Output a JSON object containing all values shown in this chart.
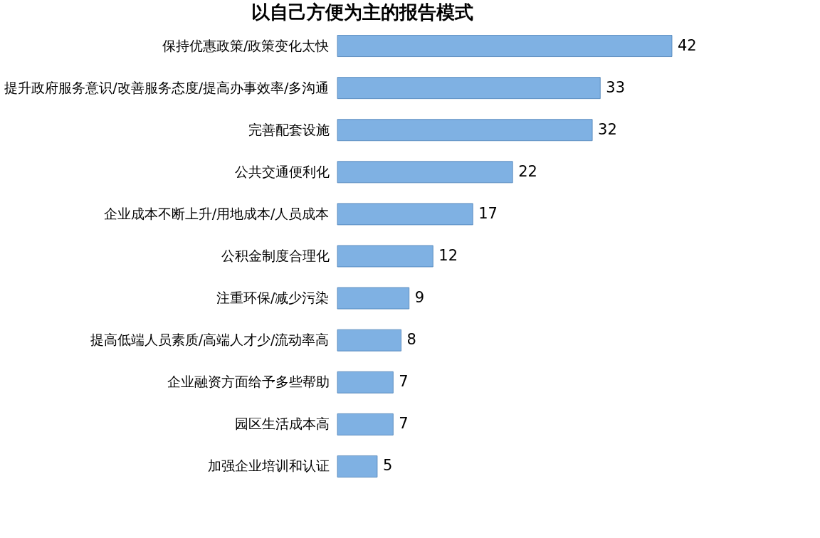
{
  "chart_data": {
    "type": "bar",
    "orientation": "horizontal",
    "title": "以自己方便为主的报告模式",
    "categories": [
      "保持优惠政策/政策变化太快",
      "提升政府服务意识/改善服务态度/提高办事效率/多沟通",
      "完善配套设施",
      "公共交通便利化",
      "企业成本不断上升/用地成本/人员成本",
      "公积金制度合理化",
      "注重环保/减少污染",
      "提高低端人员素质/高端人才少/流动率高",
      "企业融资方面给予多些帮助",
      "园区生活成本高",
      "加强企业培训和认证"
    ],
    "values": [
      42,
      33,
      32,
      22,
      17,
      12,
      9,
      8,
      7,
      7,
      5
    ],
    "color": "#7fb1e3",
    "data_labels": true
  }
}
